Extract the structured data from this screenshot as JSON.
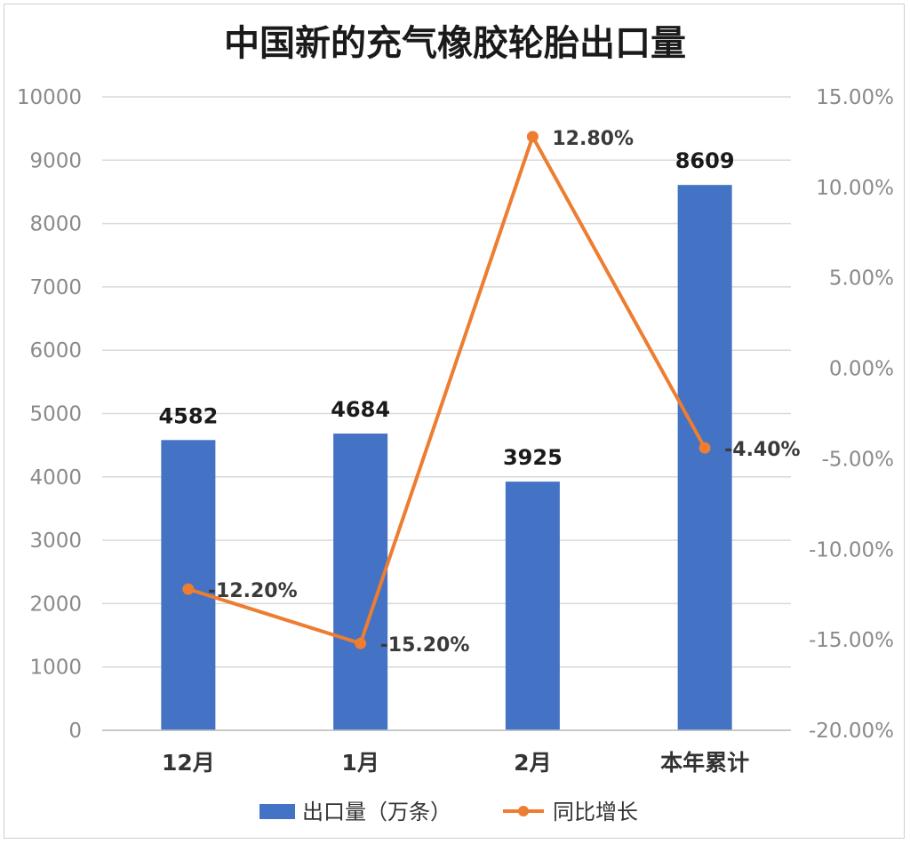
{
  "chart_data": {
    "type": "bar",
    "title": "中国新的充气橡胶轮胎出口量",
    "categories": [
      "12月",
      "1月",
      "2月",
      "本年累计"
    ],
    "series": [
      {
        "name": "出口量（万条）",
        "type": "bar",
        "axis": "left",
        "values": [
          4582,
          4684,
          3925,
          8609
        ],
        "labels": [
          "4582",
          "4684",
          "3925",
          "8609"
        ]
      },
      {
        "name": "同比增长",
        "type": "line",
        "axis": "right",
        "values": [
          -12.2,
          -15.2,
          12.8,
          -4.4
        ],
        "labels": [
          "-12.20%",
          "-15.20%",
          "12.80%",
          "-4.40%"
        ]
      }
    ],
    "y_left": {
      "range": [
        0,
        10000
      ],
      "ticks": [
        "0",
        "1000",
        "2000",
        "3000",
        "4000",
        "5000",
        "6000",
        "7000",
        "8000",
        "9000",
        "10000"
      ]
    },
    "y_right": {
      "range": [
        -20,
        15
      ],
      "ticks": [
        "-20.00%",
        "-15.00%",
        "-10.00%",
        "-5.00%",
        "0.00%",
        "5.00%",
        "10.00%",
        "15.00%"
      ]
    },
    "grid": true,
    "legend": "bottom",
    "colors": {
      "bar": "#4472C4",
      "line": "#ED7D31"
    }
  }
}
